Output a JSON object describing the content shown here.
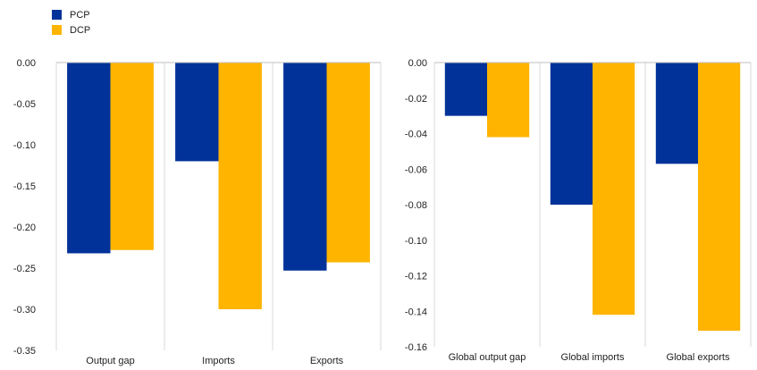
{
  "legend": [
    {
      "name": "PCP",
      "color": "#003299"
    },
    {
      "name": "DCP",
      "color": "#FFB400"
    }
  ],
  "chart_data": [
    {
      "type": "bar",
      "categories": [
        "Output gap",
        "Imports",
        "Exports"
      ],
      "series": [
        {
          "name": "PCP",
          "color": "#003299",
          "values": [
            -0.232,
            -0.12,
            -0.253
          ]
        },
        {
          "name": "DCP",
          "color": "#FFB400",
          "values": [
            -0.228,
            -0.3,
            -0.243
          ]
        }
      ],
      "ylim": [
        -0.35,
        0.0
      ],
      "yticks": [
        "0.00",
        "-0.05",
        "-0.10",
        "-0.15",
        "-0.20",
        "-0.25",
        "-0.30",
        "-0.35"
      ],
      "ytick_values": [
        0,
        -0.05,
        -0.1,
        -0.15,
        -0.2,
        -0.25,
        -0.3,
        -0.35
      ],
      "grid": "vertical separators"
    },
    {
      "type": "bar",
      "categories": [
        "Global output gap",
        "Global imports",
        "Global exports"
      ],
      "series": [
        {
          "name": "PCP",
          "color": "#003299",
          "values": [
            -0.03,
            -0.08,
            -0.057
          ]
        },
        {
          "name": "DCP",
          "color": "#FFB400",
          "values": [
            -0.042,
            -0.142,
            -0.151
          ]
        }
      ],
      "ylim": [
        -0.16,
        0.0
      ],
      "yticks": [
        "0.00",
        "-0.02",
        "-0.04",
        "-0.06",
        "-0.08",
        "-0.10",
        "-0.12",
        "-0.14",
        "-0.16"
      ],
      "ytick_values": [
        0,
        -0.02,
        -0.04,
        -0.06,
        -0.08,
        -0.1,
        -0.12,
        -0.14,
        -0.16
      ],
      "grid": "vertical separators"
    }
  ]
}
